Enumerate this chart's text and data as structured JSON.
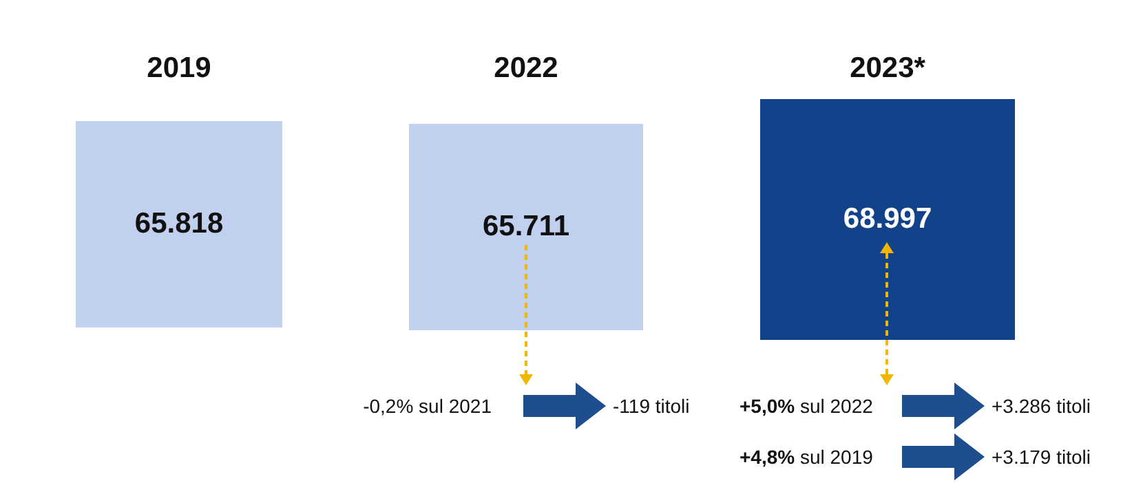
{
  "chart_data": {
    "type": "other",
    "categories": [
      "2019",
      "2022",
      "2023*"
    ],
    "values": [
      65.818,
      65.711,
      68.997
    ],
    "data_labels": true,
    "colors": [
      "#c0d0ee",
      "#c0d0ee",
      "#12428a"
    ],
    "annotations": [
      "-0,2% sul 2021",
      "-119 titoli",
      "+5,0% sul 2022",
      "+3.286 titoli",
      "+4,8% sul 2019",
      "+3.179 titoli"
    ]
  }
}
